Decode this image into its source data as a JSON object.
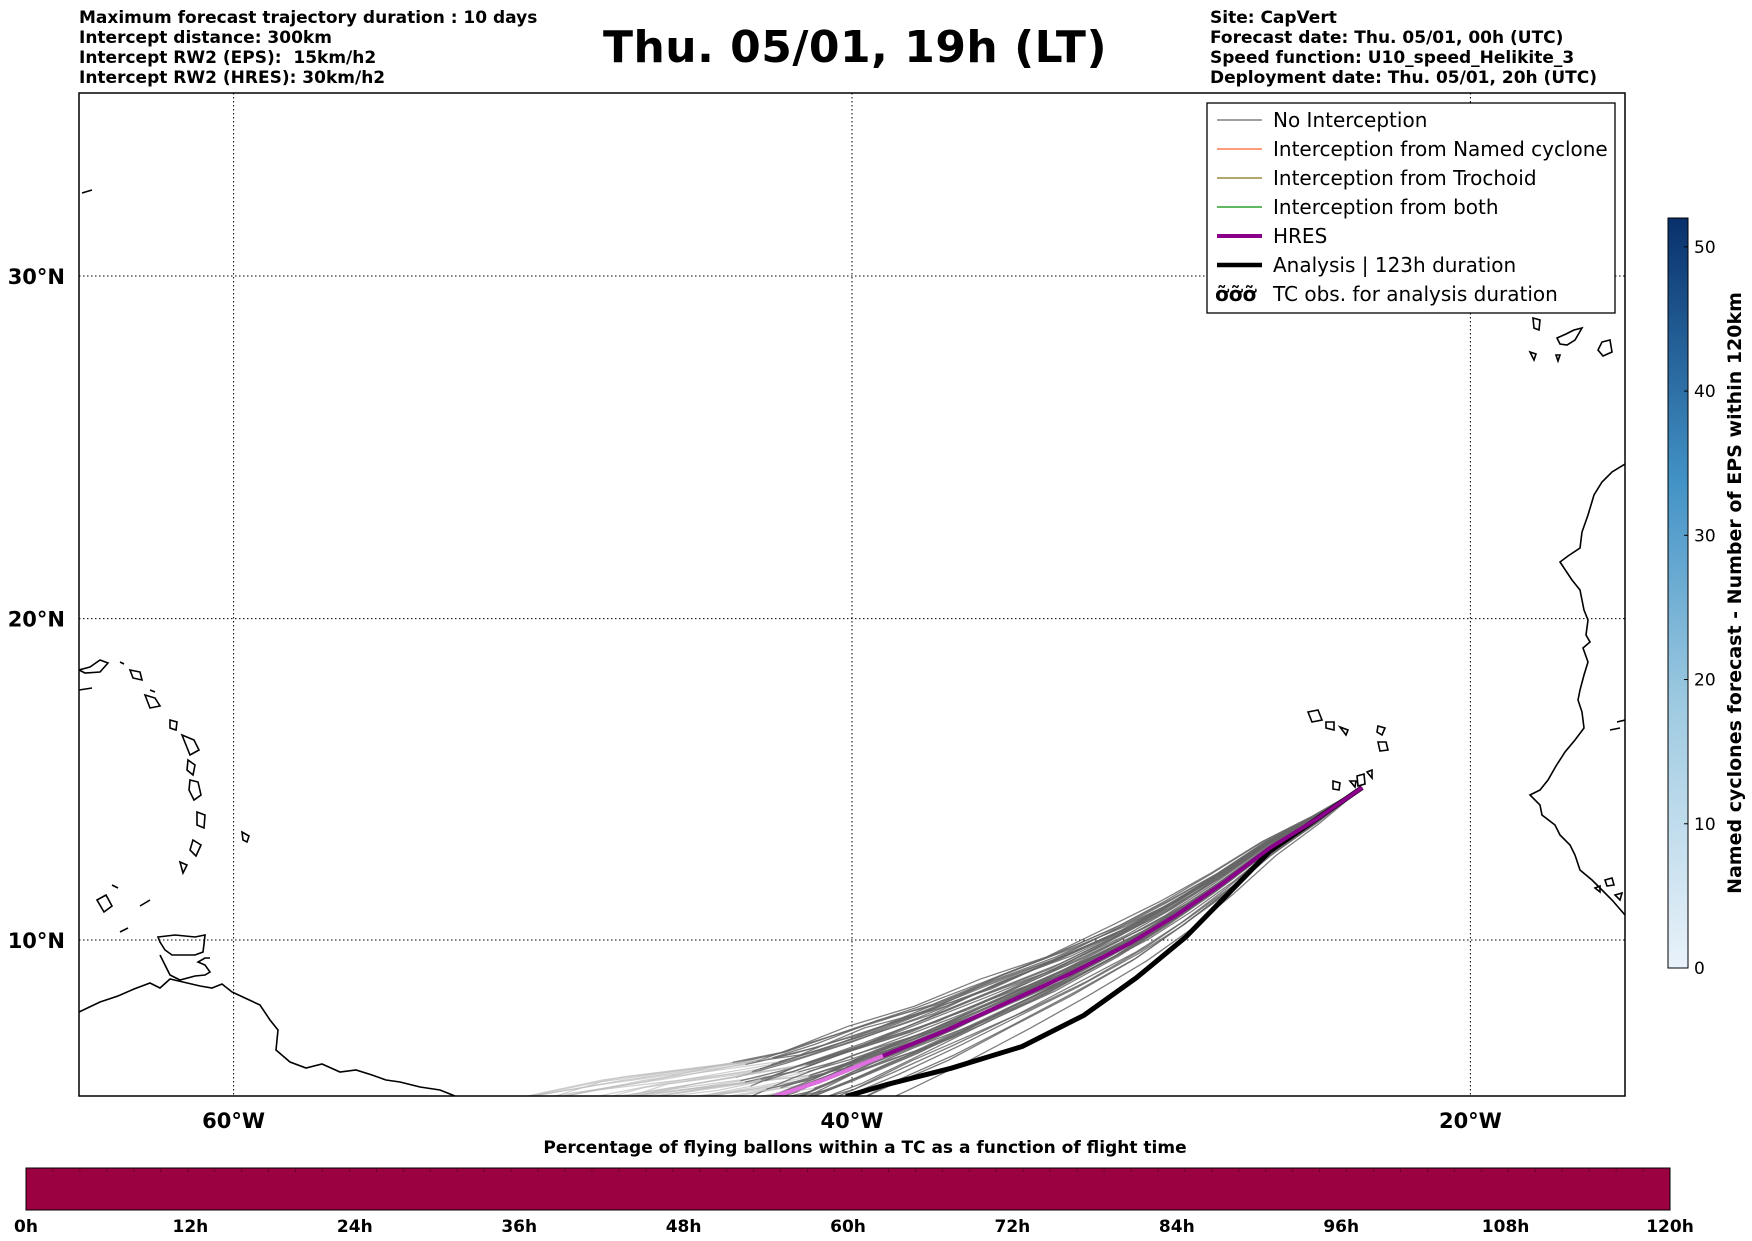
{
  "header_left": [
    "Maximum forecast trajectory duration : 10 days",
    "Intercept distance: 300km",
    "Intercept RW2 (EPS):  15km/h2",
    "Intercept RW2 (HRES): 30km/h2"
  ],
  "header_right": [
    "Site: CapVert",
    "Forecast date: Thu. 05/01, 00h (UTC)",
    "Speed function: U10_speed_Helikite_3",
    "Deployment date: Thu. 05/01, 20h (UTC)"
  ],
  "title": "Thu. 05/01, 19h (LT)",
  "map": {
    "lon_range": [
      -65,
      -15
    ],
    "lat_range": [
      5,
      35
    ],
    "lat_ticks": [
      {
        "value": 30,
        "label": "30°N"
      },
      {
        "value": 20,
        "label": "20°N"
      },
      {
        "value": 10,
        "label": "10°N"
      }
    ],
    "lon_ticks": [
      {
        "value": -60,
        "label": "60°W"
      },
      {
        "value": -40,
        "label": "40°W"
      },
      {
        "value": -20,
        "label": "20°W"
      }
    ],
    "grid": "dotted",
    "launch_point": {
      "lon": -23.5,
      "lat": 14.8
    },
    "hres_track": [
      [
        -23.5,
        14.8
      ],
      [
        -25,
        13.8
      ],
      [
        -26.5,
        12.9
      ],
      [
        -28,
        11.8
      ],
      [
        -29.5,
        10.8
      ],
      [
        -31,
        9.9
      ],
      [
        -33,
        8.9
      ],
      [
        -35,
        8.0
      ],
      [
        -37,
        7.1
      ],
      [
        -39,
        6.3
      ],
      [
        -41,
        5.5
      ],
      [
        -42.5,
        5.0
      ]
    ],
    "analysis_track": [
      [
        -23.5,
        14.8
      ],
      [
        -25,
        13.8
      ],
      [
        -26.5,
        12.8
      ],
      [
        -27.8,
        11.5
      ],
      [
        -29.2,
        10.1
      ],
      [
        -30.8,
        8.8
      ],
      [
        -32.5,
        7.6
      ],
      [
        -34.5,
        6.6
      ],
      [
        -36.8,
        5.9
      ],
      [
        -38.8,
        5.4
      ],
      [
        -40.2,
        5.0
      ]
    ],
    "eps_member_count": 50
  },
  "legend": {
    "items": [
      {
        "label": "No Interception",
        "color": "#808080",
        "width": 1.5,
        "kind": "line"
      },
      {
        "label": "Interception from Named cyclone",
        "color": "#ff7f50",
        "width": 1.5,
        "kind": "line"
      },
      {
        "label": "Interception from Trochoid",
        "color": "#9b8a3c",
        "width": 1.5,
        "kind": "line"
      },
      {
        "label": "Interception from both",
        "color": "#2ca02c",
        "width": 1.5,
        "kind": "line"
      },
      {
        "label": "HRES",
        "color": "#8b008b",
        "width": 4,
        "kind": "line"
      },
      {
        "label": "Analysis | 123h duration",
        "color": "#000000",
        "width": 4.5,
        "kind": "line"
      },
      {
        "label": "TC obs. for analysis duration",
        "color": "#000000",
        "width": 1,
        "kind": "symbol",
        "symbol": "ỡỡỡ"
      }
    ],
    "placement": "top-right"
  },
  "colorbar": {
    "label": "Named cyclones forecast - Number of EPS within 120km",
    "range": [
      0,
      52
    ],
    "ticks": [
      0,
      10,
      20,
      30,
      40,
      50
    ],
    "color_low": "#e9f2fa",
    "color_high": "#08306b"
  },
  "time_bar": {
    "title": "Percentage of flying ballons within a TC as a function of flight time",
    "color": "#9b0040",
    "ticks": [
      "0h",
      "12h",
      "24h",
      "36h",
      "48h",
      "60h",
      "72h",
      "84h",
      "96h",
      "108h",
      "120h"
    ],
    "segments": 61
  }
}
